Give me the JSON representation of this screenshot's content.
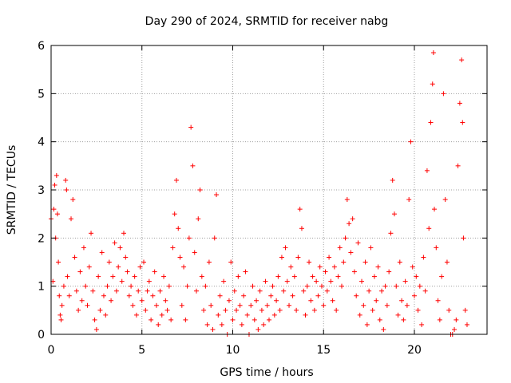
{
  "chart_data": {
    "type": "scatter",
    "title": "Day 290 of 2024, SRMTID for receiver nabg",
    "xlabel": "GPS time / hours",
    "ylabel": "SRMTID / TECUs",
    "xlim": [
      0,
      24
    ],
    "ylim": [
      0,
      6
    ],
    "xticks": [
      0,
      5,
      10,
      15,
      20
    ],
    "xtick_labels": [
      "0",
      "5",
      "10",
      "15",
      "20"
    ],
    "yticks": [
      0,
      1,
      2,
      3,
      4,
      5,
      6
    ],
    "ytick_labels": [
      "0",
      "1",
      "2",
      "3",
      "4",
      "5",
      "6"
    ],
    "grid": true,
    "marker": "plus",
    "color": "#ff0000",
    "series": [
      {
        "name": "SRMTID",
        "points": [
          [
            0.0,
            2.4
          ],
          [
            0.1,
            1.1
          ],
          [
            0.15,
            2.6
          ],
          [
            0.2,
            3.1
          ],
          [
            0.25,
            2.0
          ],
          [
            0.3,
            3.3
          ],
          [
            0.35,
            2.5
          ],
          [
            0.4,
            1.5
          ],
          [
            0.45,
            0.8
          ],
          [
            0.5,
            0.4
          ],
          [
            0.55,
            0.3
          ],
          [
            0.6,
            0.6
          ],
          [
            0.7,
            1.0
          ],
          [
            0.8,
            3.2
          ],
          [
            0.85,
            3.0
          ],
          [
            0.9,
            1.2
          ],
          [
            1.0,
            0.8
          ],
          [
            1.1,
            2.4
          ],
          [
            1.2,
            2.8
          ],
          [
            1.3,
            1.6
          ],
          [
            1.4,
            0.9
          ],
          [
            1.5,
            0.5
          ],
          [
            1.6,
            1.3
          ],
          [
            1.7,
            0.7
          ],
          [
            1.8,
            1.8
          ],
          [
            1.9,
            1.0
          ],
          [
            2.0,
            0.6
          ],
          [
            2.1,
            1.4
          ],
          [
            2.2,
            2.1
          ],
          [
            2.3,
            0.9
          ],
          [
            2.4,
            0.3
          ],
          [
            2.5,
            0.1
          ],
          [
            2.6,
            1.2
          ],
          [
            2.7,
            0.5
          ],
          [
            2.8,
            1.7
          ],
          [
            2.9,
            0.8
          ],
          [
            3.0,
            0.4
          ],
          [
            3.1,
            1.0
          ],
          [
            3.2,
            1.5
          ],
          [
            3.3,
            0.7
          ],
          [
            3.4,
            1.2
          ],
          [
            3.5,
            1.9
          ],
          [
            3.6,
            0.9
          ],
          [
            3.7,
            1.4
          ],
          [
            3.8,
            1.8
          ],
          [
            3.9,
            1.1
          ],
          [
            4.0,
            2.1
          ],
          [
            4.1,
            1.6
          ],
          [
            4.2,
            1.3
          ],
          [
            4.3,
            0.8
          ],
          [
            4.4,
            1.0
          ],
          [
            4.5,
            0.6
          ],
          [
            4.6,
            1.2
          ],
          [
            4.7,
            0.4
          ],
          [
            4.8,
            0.9
          ],
          [
            4.9,
            1.4
          ],
          [
            5.0,
            0.7
          ],
          [
            5.1,
            1.5
          ],
          [
            5.2,
            0.5
          ],
          [
            5.3,
            0.9
          ],
          [
            5.4,
            1.1
          ],
          [
            5.5,
            0.3
          ],
          [
            5.6,
            0.8
          ],
          [
            5.7,
            1.3
          ],
          [
            5.8,
            0.6
          ],
          [
            5.9,
            0.2
          ],
          [
            6.0,
            0.9
          ],
          [
            6.1,
            0.4
          ],
          [
            6.2,
            1.2
          ],
          [
            6.3,
            0.7
          ],
          [
            6.4,
            0.5
          ],
          [
            6.5,
            1.0
          ],
          [
            6.6,
            0.3
          ],
          [
            6.7,
            1.8
          ],
          [
            6.8,
            2.5
          ],
          [
            6.9,
            3.2
          ],
          [
            7.0,
            2.2
          ],
          [
            7.1,
            1.6
          ],
          [
            7.2,
            0.6
          ],
          [
            7.3,
            1.4
          ],
          [
            7.4,
            0.3
          ],
          [
            7.5,
            1.0
          ],
          [
            7.6,
            2.0
          ],
          [
            7.7,
            4.3
          ],
          [
            7.8,
            3.5
          ],
          [
            7.9,
            1.7
          ],
          [
            8.0,
            0.9
          ],
          [
            8.1,
            2.4
          ],
          [
            8.2,
            3.0
          ],
          [
            8.3,
            1.2
          ],
          [
            8.4,
            0.5
          ],
          [
            8.5,
            1.0
          ],
          [
            8.6,
            0.2
          ],
          [
            8.7,
            1.5
          ],
          [
            8.8,
            0.6
          ],
          [
            8.9,
            0.1
          ],
          [
            9.0,
            2.0
          ],
          [
            9.1,
            2.9
          ],
          [
            9.2,
            0.4
          ],
          [
            9.3,
            0.8
          ],
          [
            9.4,
            0.2
          ],
          [
            9.5,
            1.1
          ],
          [
            9.6,
            0.5
          ],
          [
            9.7,
            0.0
          ],
          [
            9.8,
            0.7
          ],
          [
            9.9,
            1.5
          ],
          [
            10.0,
            0.3
          ],
          [
            10.1,
            0.9
          ],
          [
            10.2,
            0.5
          ],
          [
            10.3,
            1.2
          ],
          [
            10.4,
            0.6
          ],
          [
            10.5,
            0.2
          ],
          [
            10.6,
            0.8
          ],
          [
            10.7,
            1.3
          ],
          [
            10.8,
            0.4
          ],
          [
            10.9,
            0.0
          ],
          [
            11.0,
            0.6
          ],
          [
            11.1,
            1.0
          ],
          [
            11.2,
            0.3
          ],
          [
            11.3,
            0.7
          ],
          [
            11.4,
            0.1
          ],
          [
            11.5,
            0.9
          ],
          [
            11.6,
            0.5
          ],
          [
            11.7,
            0.2
          ],
          [
            11.8,
            1.1
          ],
          [
            11.9,
            0.6
          ],
          [
            12.0,
            0.3
          ],
          [
            12.1,
            0.8
          ],
          [
            12.2,
            1.0
          ],
          [
            12.3,
            0.4
          ],
          [
            12.4,
            0.7
          ],
          [
            12.5,
            1.2
          ],
          [
            12.6,
            0.5
          ],
          [
            12.7,
            1.6
          ],
          [
            12.8,
            0.9
          ],
          [
            12.9,
            1.8
          ],
          [
            13.0,
            1.1
          ],
          [
            13.1,
            0.6
          ],
          [
            13.2,
            1.4
          ],
          [
            13.3,
            0.8
          ],
          [
            13.4,
            1.2
          ],
          [
            13.5,
            0.5
          ],
          [
            13.6,
            1.6
          ],
          [
            13.7,
            2.6
          ],
          [
            13.8,
            2.2
          ],
          [
            13.9,
            0.9
          ],
          [
            14.0,
            0.4
          ],
          [
            14.1,
            1.0
          ],
          [
            14.2,
            1.5
          ],
          [
            14.3,
            0.7
          ],
          [
            14.4,
            1.2
          ],
          [
            14.5,
            0.5
          ],
          [
            14.6,
            1.1
          ],
          [
            14.7,
            0.8
          ],
          [
            14.8,
            1.4
          ],
          [
            14.9,
            1.0
          ],
          [
            15.0,
            0.6
          ],
          [
            15.1,
            1.3
          ],
          [
            15.2,
            0.9
          ],
          [
            15.3,
            1.6
          ],
          [
            15.4,
            1.1
          ],
          [
            15.5,
            0.7
          ],
          [
            15.6,
            1.4
          ],
          [
            15.7,
            0.5
          ],
          [
            15.8,
            1.2
          ],
          [
            15.9,
            1.8
          ],
          [
            16.0,
            1.0
          ],
          [
            16.1,
            1.5
          ],
          [
            16.2,
            2.0
          ],
          [
            16.3,
            2.8
          ],
          [
            16.4,
            2.3
          ],
          [
            16.5,
            1.7
          ],
          [
            16.6,
            2.4
          ],
          [
            16.7,
            1.3
          ],
          [
            16.8,
            0.8
          ],
          [
            16.9,
            1.9
          ],
          [
            17.0,
            0.4
          ],
          [
            17.1,
            1.1
          ],
          [
            17.2,
            0.6
          ],
          [
            17.3,
            1.5
          ],
          [
            17.4,
            0.2
          ],
          [
            17.5,
            0.9
          ],
          [
            17.6,
            1.8
          ],
          [
            17.7,
            0.5
          ],
          [
            17.8,
            1.2
          ],
          [
            17.9,
            0.7
          ],
          [
            18.0,
            1.4
          ],
          [
            18.1,
            0.3
          ],
          [
            18.2,
            0.9
          ],
          [
            18.3,
            0.1
          ],
          [
            18.4,
            1.0
          ],
          [
            18.5,
            0.6
          ],
          [
            18.6,
            1.3
          ],
          [
            18.7,
            2.1
          ],
          [
            18.8,
            3.2
          ],
          [
            18.9,
            2.5
          ],
          [
            19.0,
            1.0
          ],
          [
            19.1,
            0.4
          ],
          [
            19.2,
            1.5
          ],
          [
            19.3,
            0.7
          ],
          [
            19.4,
            0.3
          ],
          [
            19.5,
            1.1
          ],
          [
            19.6,
            0.6
          ],
          [
            19.7,
            2.8
          ],
          [
            19.8,
            4.0
          ],
          [
            19.9,
            1.4
          ],
          [
            20.0,
            0.8
          ],
          [
            20.1,
            1.2
          ],
          [
            20.2,
            0.5
          ],
          [
            20.3,
            1.0
          ],
          [
            20.4,
            0.2
          ],
          [
            20.5,
            1.6
          ],
          [
            20.6,
            0.9
          ],
          [
            20.7,
            3.4
          ],
          [
            20.8,
            2.2
          ],
          [
            20.9,
            4.4
          ],
          [
            21.0,
            5.2
          ],
          [
            21.05,
            5.85
          ],
          [
            21.1,
            2.6
          ],
          [
            21.2,
            1.8
          ],
          [
            21.3,
            0.7
          ],
          [
            21.4,
            0.3
          ],
          [
            21.5,
            1.2
          ],
          [
            21.6,
            5.0
          ],
          [
            21.7,
            2.8
          ],
          [
            21.8,
            1.5
          ],
          [
            21.9,
            0.5
          ],
          [
            22.0,
            0.0
          ],
          [
            22.1,
            0.0
          ],
          [
            22.2,
            0.1
          ],
          [
            22.3,
            0.3
          ],
          [
            22.4,
            3.5
          ],
          [
            22.5,
            4.8
          ],
          [
            22.6,
            5.7
          ],
          [
            22.65,
            4.4
          ],
          [
            22.7,
            2.0
          ],
          [
            22.8,
            0.5
          ],
          [
            22.9,
            0.2
          ]
        ]
      }
    ]
  }
}
